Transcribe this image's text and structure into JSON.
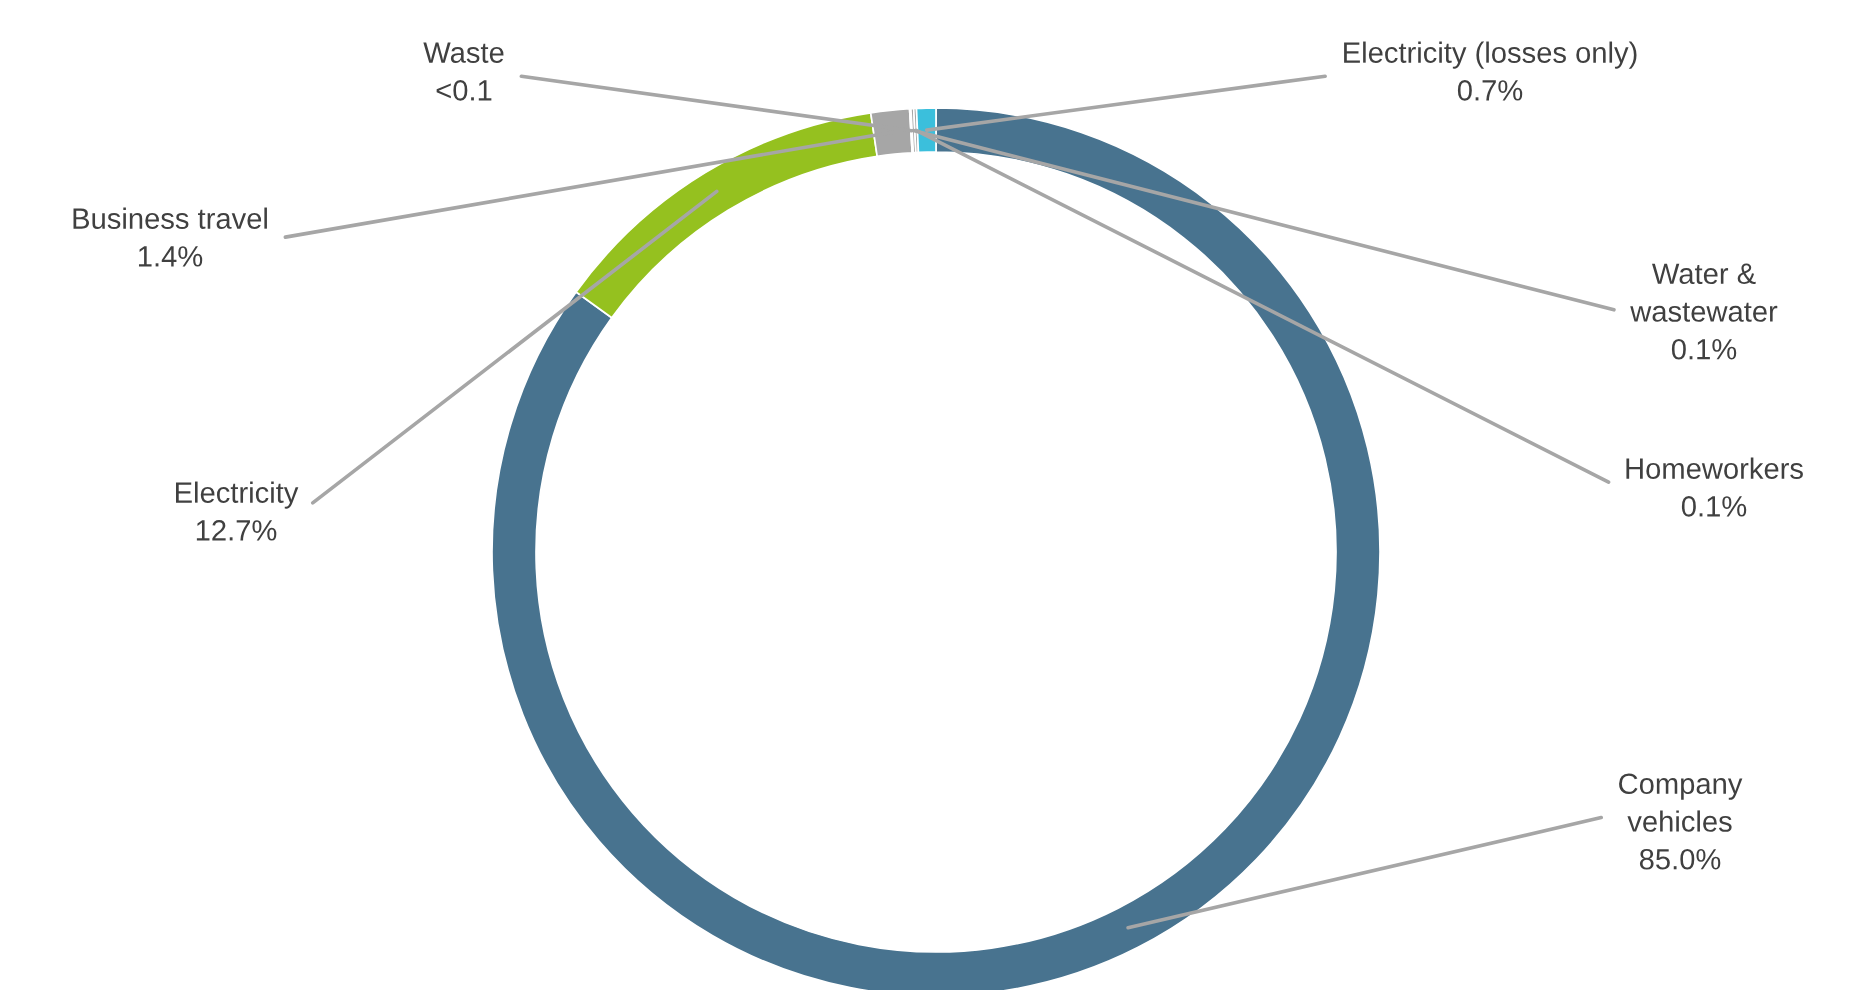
{
  "chart_data": {
    "type": "donut",
    "categories": [
      "Company vehicles",
      "Electricity",
      "Business travel",
      "Waste",
      "Water & wastewater",
      "Homeworkers",
      "Electricity (losses only)"
    ],
    "values": [
      85.0,
      12.7,
      1.4,
      0.05,
      0.1,
      0.1,
      0.7
    ],
    "value_labels": [
      "85.0%",
      "12.7%",
      "1.4%",
      "<0.1",
      "0.1%",
      "0.1%",
      "0.7%"
    ],
    "colors": [
      "#48738f",
      "#95c11f",
      "#a6a6a6",
      "#a6a6a6",
      "#a6a6a6",
      "#a6a6a6",
      "#3bbfdc"
    ],
    "legend": false
  }
}
